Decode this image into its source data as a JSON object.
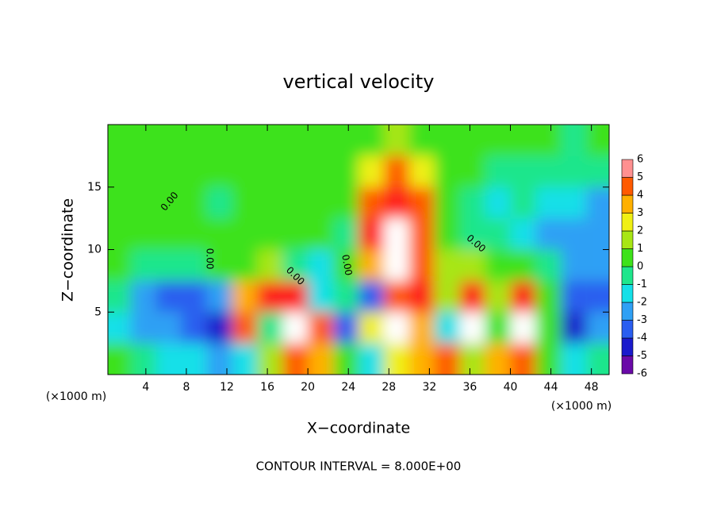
{
  "chart_data": {
    "type": "heatmap",
    "title": "vertical velocity",
    "xlabel": "X−coordinate",
    "ylabel": "Z−coordinate",
    "x_unit_label": "(×1000 m)",
    "note": "CONTOUR INTERVAL = 8.000E+00",
    "contour_label": "0.00",
    "xlim": [
      0.25,
      49.75
    ],
    "ylim": [
      0,
      20
    ],
    "xticks": [
      4,
      8,
      12,
      16,
      20,
      24,
      28,
      32,
      36,
      40,
      44,
      48
    ],
    "yticks": [
      5,
      10,
      15
    ],
    "x": [
      1.25,
      3.75,
      6.25,
      8.75,
      11.25,
      13.75,
      16.25,
      18.75,
      21.25,
      23.75,
      26.25,
      28.75,
      31.25,
      33.75,
      36.25,
      38.75,
      41.25,
      43.75,
      46.25,
      48.75
    ],
    "y": [
      1.25,
      3.75,
      6.25,
      8.75,
      11.25,
      13.75,
      16.25,
      18.75
    ],
    "z": [
      [
        0,
        -1,
        -2,
        -2,
        -3,
        -2,
        1,
        4,
        3,
        0,
        -2,
        2,
        3,
        4,
        1,
        3,
        4,
        0,
        -2,
        -1
      ],
      [
        -2,
        -3,
        -3,
        -4,
        -5,
        4,
        -1,
        7,
        4,
        -4,
        2,
        7,
        3,
        -2,
        7,
        0,
        7,
        0,
        -5,
        -3
      ],
      [
        -1,
        -3,
        -4,
        -4,
        -3,
        3,
        6,
        5,
        -2,
        -1,
        -4,
        4,
        6,
        1,
        6,
        1,
        5,
        0,
        -4,
        -4
      ],
      [
        0,
        -1,
        -1,
        -1,
        0,
        0,
        1,
        -1,
        -2,
        0,
        3,
        7,
        4,
        1,
        1,
        0,
        0,
        -1,
        -3,
        -3
      ],
      [
        0,
        0,
        0,
        0,
        0,
        0,
        0,
        0,
        0,
        -1,
        5,
        7,
        4,
        0,
        -1,
        -1,
        -2,
        -3,
        -3,
        -3
      ],
      [
        0,
        0,
        0,
        0,
        -1,
        0,
        0,
        0,
        0,
        0,
        4,
        6,
        4,
        0,
        -1,
        -2,
        -1,
        -2,
        -2,
        -3
      ],
      [
        0,
        0,
        0,
        0,
        0,
        0,
        0,
        0,
        0,
        0,
        2,
        4,
        2,
        0,
        0,
        -1,
        -1,
        -1,
        -1,
        -1
      ],
      [
        0,
        0,
        0,
        0,
        0,
        0,
        0,
        0,
        0,
        0,
        0,
        1,
        0,
        0,
        0,
        0,
        0,
        0,
        -1,
        0
      ]
    ],
    "levels": [
      -6,
      -5,
      -4,
      -3,
      -2,
      -1,
      0,
      1,
      2,
      3,
      4,
      5,
      6
    ],
    "colors": [
      "#6a0aa8",
      "#1a1acc",
      "#2a5ef0",
      "#2fa0f5",
      "#14e0e8",
      "#1ee68c",
      "#3ee21a",
      "#a8e614",
      "#f0f014",
      "#ffb000",
      "#ff5a00",
      "#ff1a1a"
    ],
    "over_color": "#ffffff",
    "top_color": "#ff9090"
  }
}
